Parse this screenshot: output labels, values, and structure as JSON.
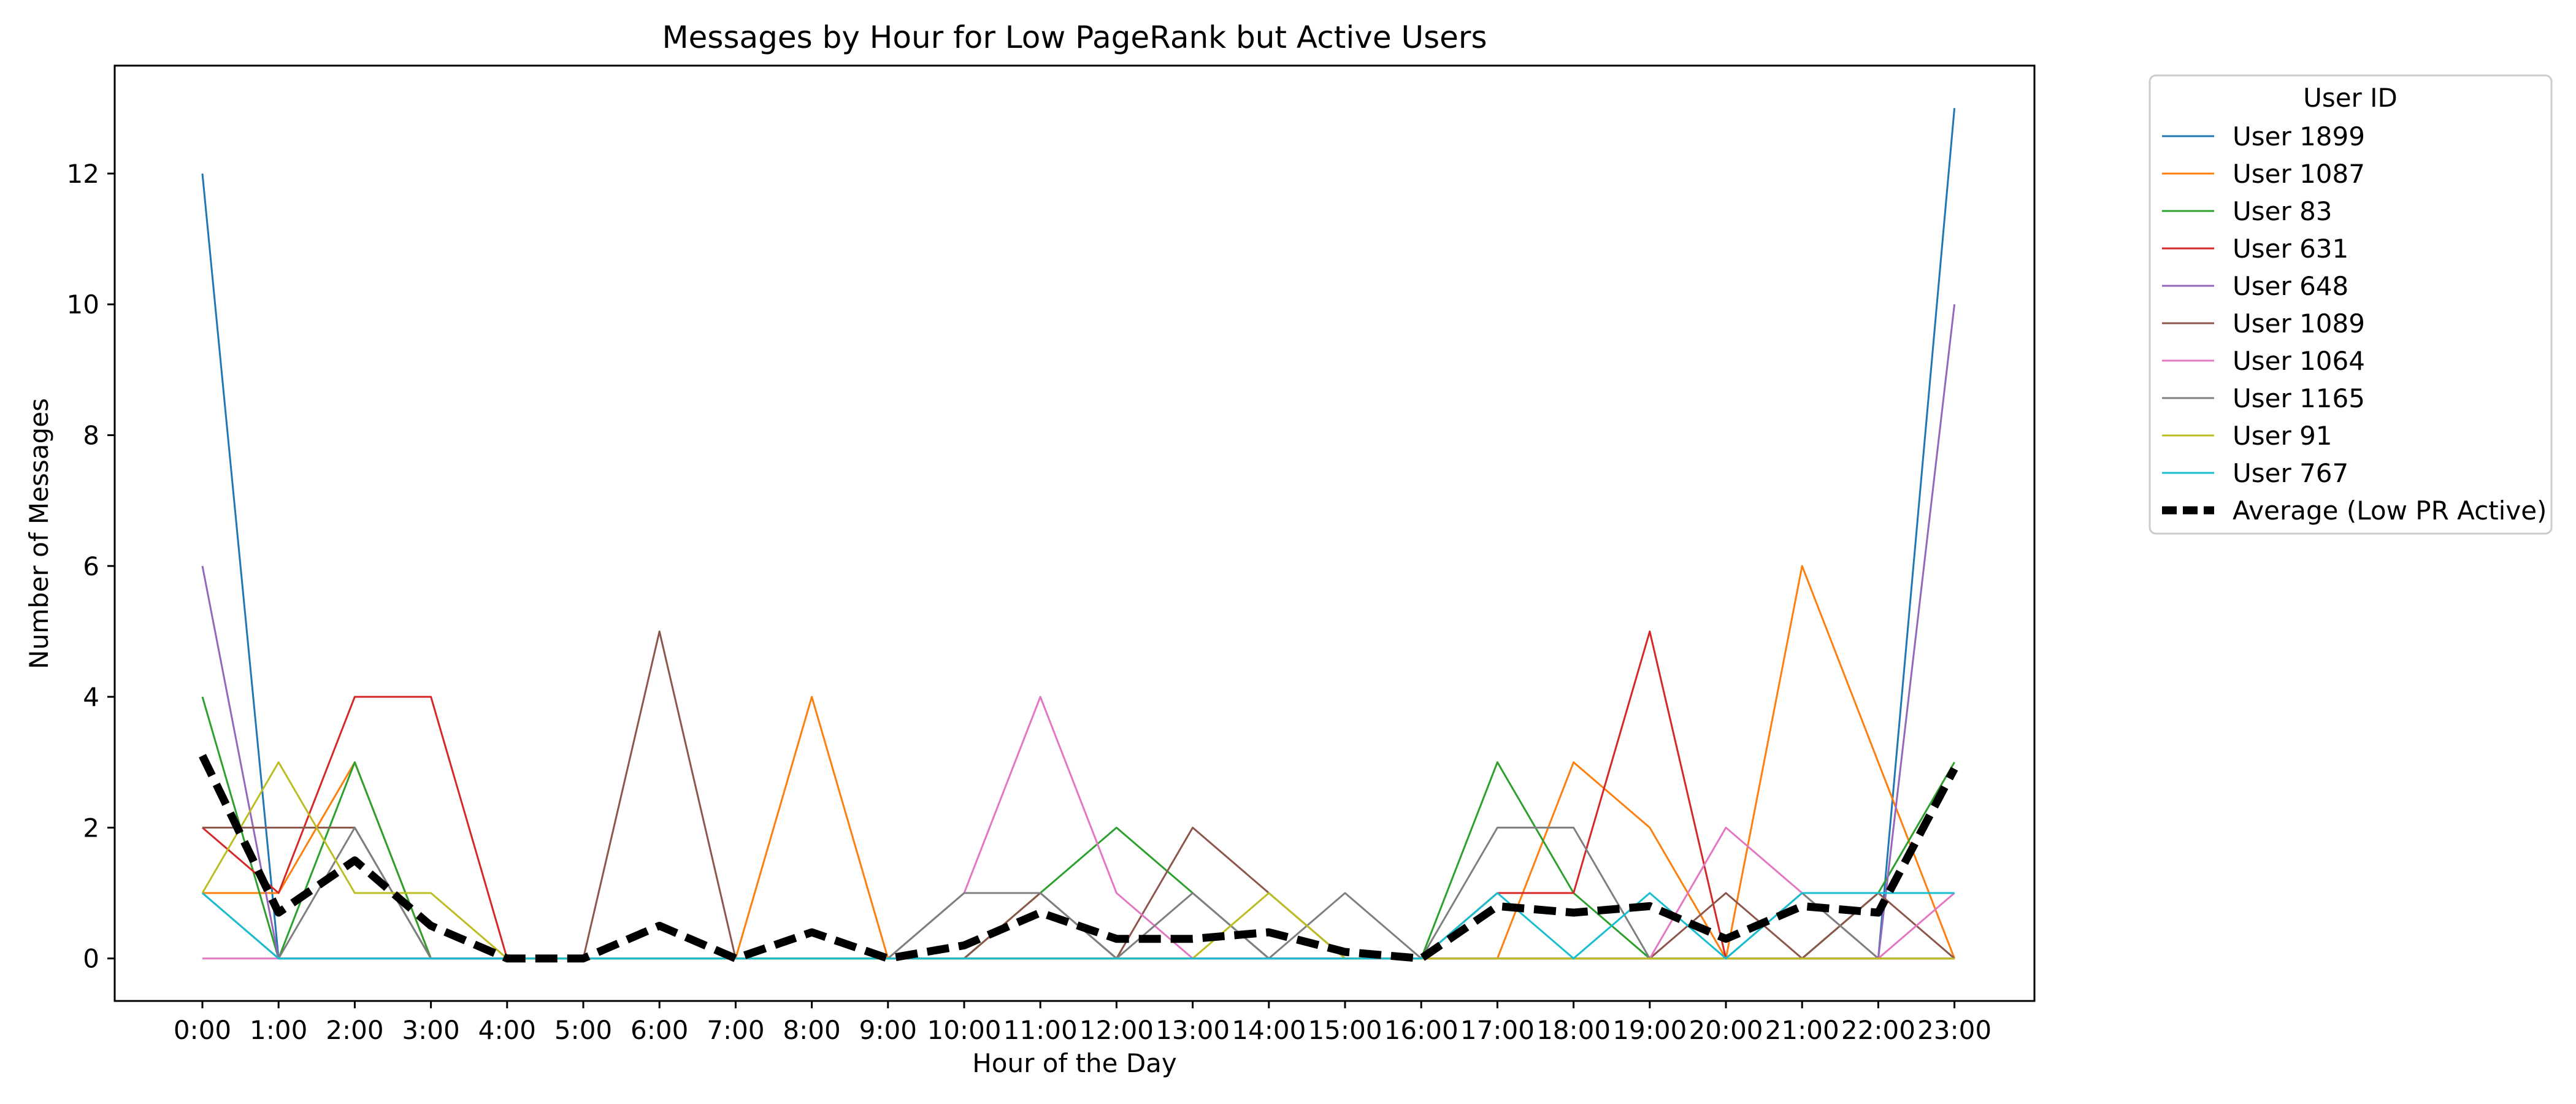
{
  "chart_data": {
    "type": "line",
    "title": "Messages by Hour for Low PageRank but Active Users",
    "xlabel": "Hour of the Day",
    "ylabel": "Number of Messages",
    "ylim": [
      -0.65,
      13.65
    ],
    "yticks": [
      0,
      2,
      4,
      6,
      8,
      10,
      12
    ],
    "grid": false,
    "legend_title": "User ID",
    "legend_position": "outside-top-right",
    "categories": [
      "0:00",
      "1:00",
      "2:00",
      "3:00",
      "4:00",
      "5:00",
      "6:00",
      "7:00",
      "8:00",
      "9:00",
      "10:00",
      "11:00",
      "12:00",
      "13:00",
      "14:00",
      "15:00",
      "16:00",
      "17:00",
      "18:00",
      "19:00",
      "20:00",
      "21:00",
      "22:00",
      "23:00"
    ],
    "series": [
      {
        "name": "User 1899",
        "color": "#1f77b4",
        "style": "solid",
        "values": [
          12,
          0,
          0,
          0,
          0,
          0,
          0,
          0,
          0,
          0,
          0,
          0,
          0,
          0,
          0,
          0,
          0,
          0,
          0,
          0,
          0,
          0,
          0,
          13
        ]
      },
      {
        "name": "User 1087",
        "color": "#ff7f0e",
        "style": "solid",
        "values": [
          1,
          1,
          3,
          0,
          0,
          0,
          0,
          0,
          4,
          0,
          0,
          0,
          0,
          0,
          0,
          0,
          0,
          0,
          3,
          2,
          0,
          6,
          3,
          0
        ]
      },
      {
        "name": "User 83",
        "color": "#2ca02c",
        "style": "solid",
        "values": [
          4,
          0,
          3,
          0,
          0,
          0,
          0,
          0,
          0,
          0,
          0,
          1,
          2,
          1,
          0,
          0,
          0,
          3,
          1,
          0,
          0,
          0,
          1,
          3
        ]
      },
      {
        "name": "User 631",
        "color": "#d62728",
        "style": "solid",
        "values": [
          2,
          1,
          4,
          4,
          0,
          0,
          0,
          0,
          0,
          0,
          0,
          0,
          0,
          0,
          0,
          0,
          0,
          1,
          1,
          5,
          0,
          0,
          0,
          0
        ]
      },
      {
        "name": "User 648",
        "color": "#9467bd",
        "style": "solid",
        "values": [
          6,
          0,
          0,
          0,
          0,
          0,
          0,
          0,
          0,
          0,
          0,
          0,
          0,
          0,
          0,
          0,
          0,
          0,
          0,
          0,
          0,
          0,
          0,
          10
        ]
      },
      {
        "name": "User 1089",
        "color": "#8c564b",
        "style": "solid",
        "values": [
          2,
          2,
          2,
          0,
          0,
          0,
          5,
          0,
          0,
          0,
          0,
          1,
          0,
          2,
          1,
          0,
          0,
          0,
          0,
          0,
          1,
          0,
          1,
          0
        ]
      },
      {
        "name": "User 1064",
        "color": "#e377c2",
        "style": "solid",
        "values": [
          0,
          0,
          0,
          0,
          0,
          0,
          0,
          0,
          0,
          0,
          1,
          4,
          1,
          0,
          0,
          0,
          0,
          0,
          0,
          0,
          2,
          1,
          0,
          1
        ]
      },
      {
        "name": "User 1165",
        "color": "#7f7f7f",
        "style": "solid",
        "values": [
          1,
          0,
          2,
          0,
          0,
          0,
          0,
          0,
          0,
          0,
          1,
          1,
          0,
          1,
          0,
          1,
          0,
          2,
          2,
          0,
          0,
          1,
          0,
          0
        ]
      },
      {
        "name": "User 91",
        "color": "#bcbd22",
        "style": "solid",
        "values": [
          1,
          3,
          1,
          1,
          0,
          0,
          0,
          0,
          0,
          0,
          0,
          0,
          0,
          0,
          1,
          0,
          0,
          0,
          0,
          0,
          0,
          0,
          0,
          0
        ]
      },
      {
        "name": "User 767",
        "color": "#17becf",
        "style": "solid",
        "values": [
          1,
          0,
          0,
          0,
          0,
          0,
          0,
          0,
          0,
          0,
          0,
          0,
          0,
          0,
          0,
          0,
          0,
          1,
          0,
          1,
          0,
          1,
          1,
          1
        ]
      },
      {
        "name": "Average (Low PR Active)",
        "color": "#000000",
        "style": "dashed",
        "values": [
          3.1,
          0.7,
          1.5,
          0.5,
          0,
          0,
          0.5,
          0,
          0.4,
          0,
          0.2,
          0.7,
          0.3,
          0.3,
          0.4,
          0.1,
          0,
          0.8,
          0.7,
          0.8,
          0.3,
          0.8,
          0.7,
          2.9
        ]
      }
    ]
  }
}
